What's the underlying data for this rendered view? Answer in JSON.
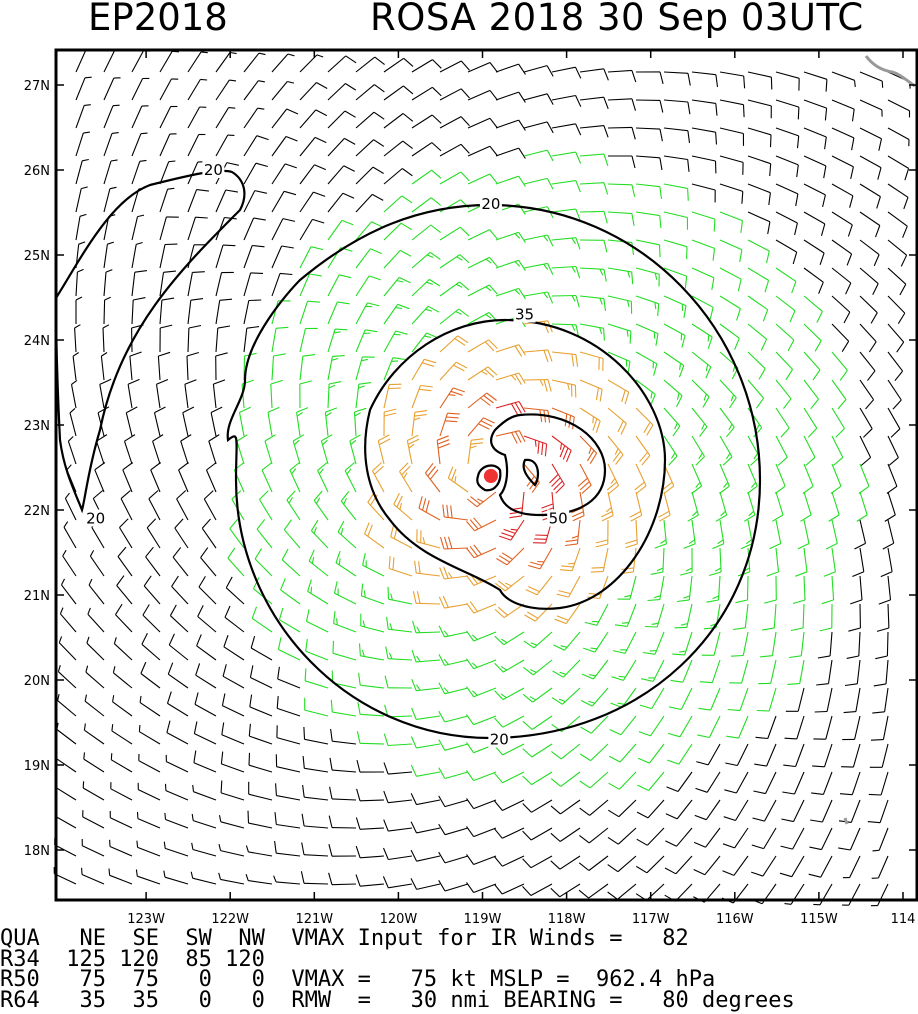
{
  "header": {
    "basin_id": "EP2018",
    "storm_title": "ROSA 2018 30 Sep 03UTC"
  },
  "chart_data": {
    "type": "wind-barb-map",
    "xlim_lon": [
      -123.9,
      -113.9
    ],
    "ylim_lat": [
      17.4,
      27.5
    ],
    "center": {
      "lon": -118.9,
      "lat": 22.4
    },
    "yticks": [
      {
        "lat": 27,
        "label": "27N"
      },
      {
        "lat": 26,
        "label": "26N"
      },
      {
        "lat": 25,
        "label": "25N"
      },
      {
        "lat": 24,
        "label": "24N"
      },
      {
        "lat": 23,
        "label": "23N"
      },
      {
        "lat": 22,
        "label": "22N"
      },
      {
        "lat": 21,
        "label": "21N"
      },
      {
        "lat": 20,
        "label": "20N"
      },
      {
        "lat": 19,
        "label": "19N"
      },
      {
        "lat": 18,
        "label": "18N"
      }
    ],
    "xticks": [
      {
        "lon": -123,
        "label": "123W"
      },
      {
        "lon": -122,
        "label": "122W"
      },
      {
        "lon": -121,
        "label": "121W"
      },
      {
        "lon": -120,
        "label": "120W"
      },
      {
        "lon": -119,
        "label": "119W"
      },
      {
        "lon": -118,
        "label": "118W"
      },
      {
        "lon": -117,
        "label": "117W"
      },
      {
        "lon": -116,
        "label": "116W"
      },
      {
        "lon": -115,
        "label": "115W"
      },
      {
        "lon": -114,
        "label": "114"
      }
    ],
    "contour_labels": [
      {
        "value": "20",
        "lon": -122.2,
        "lat": 26.0
      },
      {
        "value": "20",
        "lon": -118.9,
        "lat": 25.6
      },
      {
        "value": "20",
        "lon": -123.6,
        "lat": 21.9
      },
      {
        "value": "20",
        "lon": -118.8,
        "lat": 19.3
      },
      {
        "value": "35",
        "lon": -118.5,
        "lat": 24.3
      },
      {
        "value": "50",
        "lon": -118.1,
        "lat": 21.9
      }
    ],
    "wind_colors": {
      "below20": "#000000",
      "20to35": "#22dd22",
      "35to50": "#e8a030",
      "50to64": "#e06020",
      "above64": "#dd2222"
    },
    "center_marker_color": "#ee3333",
    "coast_color": "#999999"
  },
  "info_table": {
    "rows": [
      "QUA   NE  SE  SW  NW  VMAX Input for IR Winds =   82",
      "R34  125 120  85 120",
      "R50   75  75   0   0  VMAX =   75 kt MSLP =  962.4 hPa",
      "R64   35  35   0   0  RMW  =   30 nmi BEARING =   80 degrees"
    ]
  }
}
